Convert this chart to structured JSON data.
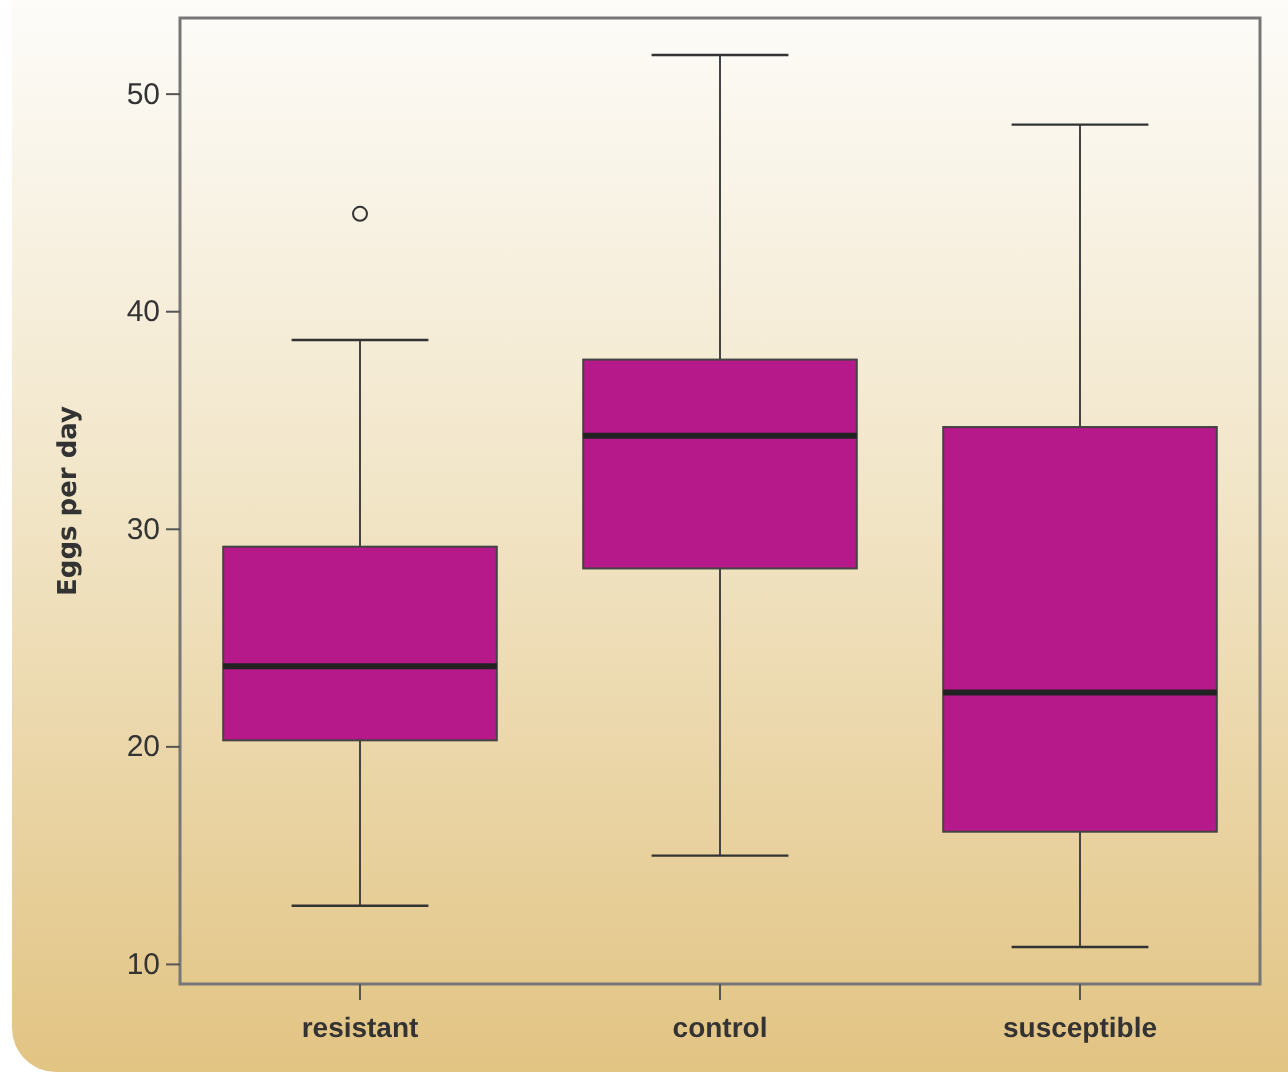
{
  "chart_data": {
    "type": "box",
    "ylabel": "Eggs per day",
    "categories": [
      "resistant",
      "control",
      "susceptible"
    ],
    "boxes": [
      {
        "low": 12.7,
        "q1": 20.3,
        "median": 23.7,
        "q3": 29.2,
        "high": 38.7,
        "outliers": [
          44.5
        ]
      },
      {
        "low": 15.0,
        "q1": 28.2,
        "median": 34.3,
        "q3": 37.8,
        "high": 51.8
      },
      {
        "low": 10.8,
        "q1": 16.1,
        "median": 22.5,
        "q3": 34.7,
        "high": 48.6
      }
    ],
    "color": "#b5198a",
    "ylim": [
      9.1,
      53.5
    ],
    "yticks": [
      10,
      20,
      30,
      40,
      50
    ]
  }
}
